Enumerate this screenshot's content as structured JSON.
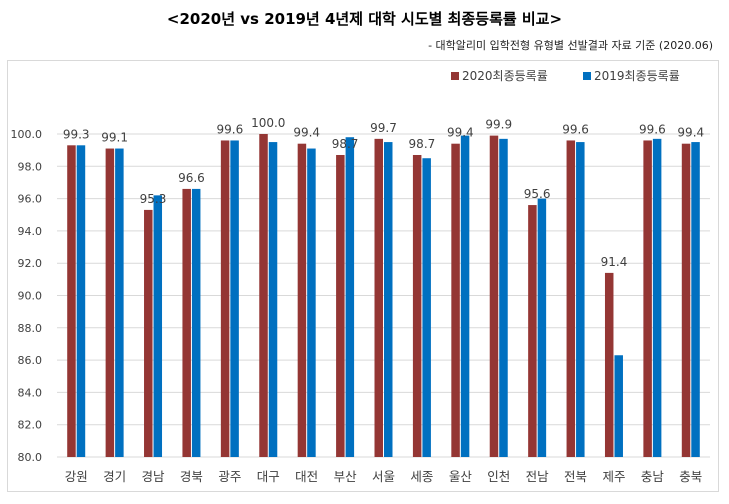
{
  "chart_data": {
    "type": "bar",
    "title": "<2020년 vs 2019년 4년제 대학 시도별 최종등록률 비교>",
    "subtitle": "- 대학알리미 입학전형 유형별 선발결과 자료 기준 (2020.06)",
    "categories": [
      "강원",
      "경기",
      "경남",
      "경북",
      "광주",
      "대구",
      "대전",
      "부산",
      "서울",
      "세종",
      "울산",
      "인천",
      "전남",
      "전북",
      "제주",
      "충남",
      "충북"
    ],
    "series": [
      {
        "name": "2020최종등록률",
        "color": "#943634",
        "values": [
          99.3,
          99.1,
          95.3,
          96.6,
          99.6,
          100.0,
          99.4,
          98.7,
          99.7,
          98.7,
          99.4,
          99.9,
          95.6,
          99.6,
          91.4,
          99.6,
          99.4
        ],
        "labels": [
          "99.3",
          "99.1",
          "95.3",
          "96.6",
          "99.6",
          "100.0",
          "99.4",
          "98.7",
          "99.7",
          "98.7",
          "99.4",
          "99.9",
          "95.6",
          "99.6",
          "91.4",
          "99.6",
          "99.4"
        ]
      },
      {
        "name": "2019최종등록률",
        "color": "#0070c0",
        "values": [
          99.3,
          99.1,
          96.2,
          96.6,
          99.6,
          99.5,
          99.1,
          99.8,
          99.5,
          98.5,
          99.9,
          99.7,
          96.0,
          99.5,
          86.3,
          99.7,
          99.5
        ]
      }
    ],
    "ylim": [
      80.0,
      100.0
    ],
    "yticks": [
      "80.0",
      "82.0",
      "84.0",
      "86.0",
      "88.0",
      "90.0",
      "92.0",
      "94.0",
      "96.0",
      "98.0",
      "100.0"
    ],
    "grid": true,
    "legend": "top-right",
    "xlabel": "",
    "ylabel": ""
  }
}
